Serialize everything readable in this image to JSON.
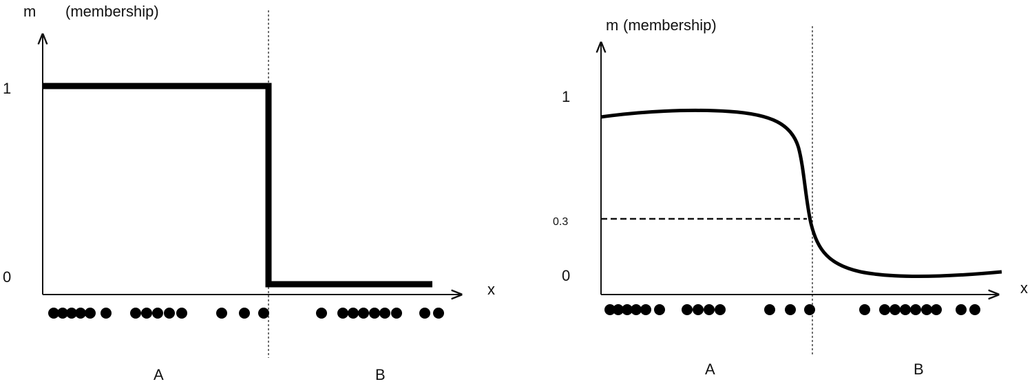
{
  "panels": [
    {
      "y_axis_label": "m",
      "y_axis_note": "(membership)",
      "y_labels": [
        "1",
        "0"
      ],
      "x_axis_label": "x",
      "groups": [
        "A",
        "B"
      ]
    },
    {
      "y_axis_label": "m",
      "y_axis_note": "(membership)",
      "y_labels": [
        "1",
        "0.3",
        "0"
      ],
      "x_axis_label": "x",
      "groups": [
        "A",
        "B"
      ]
    }
  ]
}
